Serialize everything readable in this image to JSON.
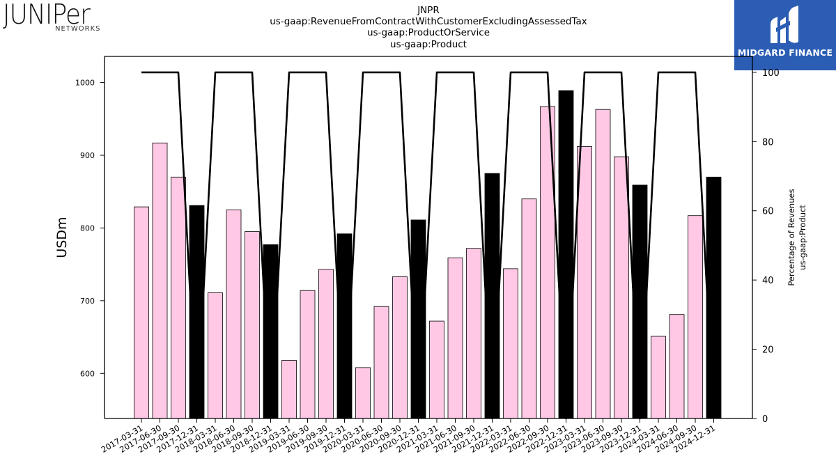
{
  "logos": {
    "left": {
      "name": "Juniper",
      "wordmark": "JUNIPer",
      "subtext": "NETWORKS"
    },
    "right": {
      "name": "MIDGARD FINANCE"
    }
  },
  "chart_data": {
    "type": "bar",
    "title_lines": [
      "JNPR",
      "us-gaap:RevenueFromContractWithCustomerExcludingAssessedTax",
      "us-gaap:ProductOrService",
      "us-gaap:Product"
    ],
    "ylabel": "USDm",
    "y2label_lines": [
      "Percentage of Revenues",
      "us-gaap:Product"
    ],
    "ylim": [
      538,
      1036
    ],
    "y2lim": [
      0,
      104.6
    ],
    "yticks": [
      600,
      700,
      800,
      900,
      1000
    ],
    "y2ticks": [
      0,
      20,
      40,
      60,
      80,
      100
    ],
    "categories": [
      "2017-03-31",
      "2017-06-30",
      "2017-09-30",
      "2017-12-31",
      "2018-03-31",
      "2018-06-30",
      "2018-09-30",
      "2018-12-31",
      "2019-03-31",
      "2019-06-30",
      "2019-09-30",
      "2019-12-31",
      "2020-03-31",
      "2020-06-30",
      "2020-09-30",
      "2020-12-31",
      "2021-03-31",
      "2021-06-30",
      "2021-09-30",
      "2021-12-31",
      "2022-03-31",
      "2022-06-30",
      "2022-09-30",
      "2022-12-31",
      "2023-03-31",
      "2023-06-30",
      "2023-09-30",
      "2023-12-31",
      "2024-03-31",
      "2024-06-30",
      "2024-09-30",
      "2024-12-31"
    ],
    "values": [
      829,
      917,
      870,
      831,
      711,
      825,
      795,
      777,
      618,
      714,
      743,
      792,
      608,
      692,
      733,
      811,
      672,
      759,
      772,
      875,
      744,
      840,
      967,
      989,
      912,
      963,
      898,
      859,
      651,
      681,
      817,
      870
    ],
    "percent": [
      100,
      100,
      100,
      0,
      100,
      100,
      100,
      0,
      100,
      100,
      100,
      0,
      100,
      100,
      100,
      0,
      100,
      100,
      100,
      0,
      100,
      100,
      100,
      0,
      100,
      100,
      100,
      0,
      100,
      100,
      100,
      0
    ],
    "colors": {
      "quarter": "#ffc8e4",
      "annual": "#000000",
      "line": "#000000"
    },
    "grid": false
  }
}
